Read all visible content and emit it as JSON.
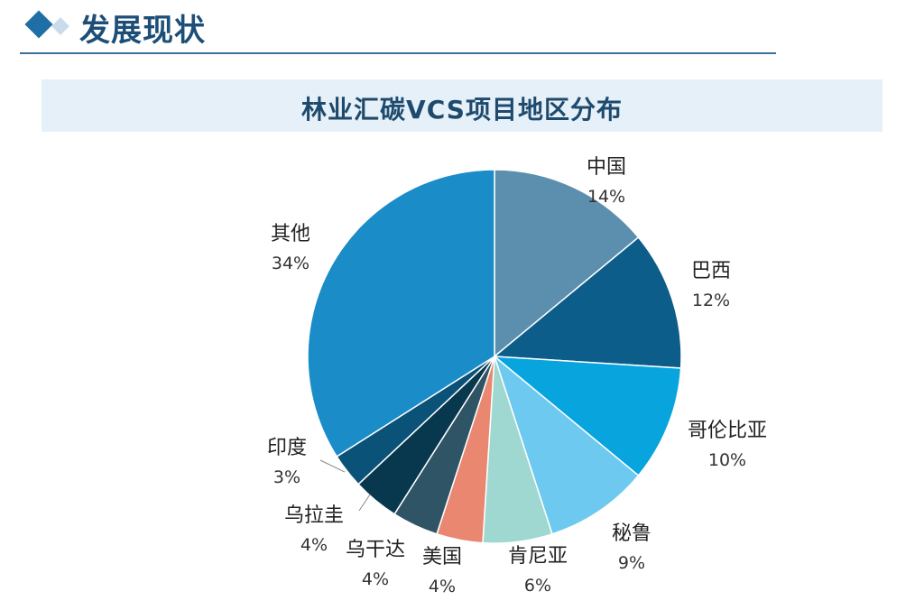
{
  "header": {
    "section_title": "发展现状"
  },
  "chart_data": {
    "type": "pie",
    "title": "林业汇碳VCS项目地区分布",
    "slices": [
      {
        "label": "中国",
        "percent_label": "14%",
        "value": 14,
        "color": "#5b8fad"
      },
      {
        "label": "巴西",
        "percent_label": "12%",
        "value": 12,
        "color": "#0d5d8a"
      },
      {
        "label": "哥伦比亚",
        "percent_label": "10%",
        "value": 10,
        "color": "#07a4dd"
      },
      {
        "label": "秘鲁",
        "percent_label": "9%",
        "value": 9,
        "color": "#6dc9ef"
      },
      {
        "label": "肯尼亚",
        "percent_label": "6%",
        "value": 6,
        "color": "#9fd8d1"
      },
      {
        "label": "美国",
        "percent_label": "4%",
        "value": 4,
        "color": "#ea8770"
      },
      {
        "label": "乌干达",
        "percent_label": "4%",
        "value": 4,
        "color": "#2e5466"
      },
      {
        "label": "乌拉圭",
        "percent_label": "4%",
        "value": 4,
        "color": "#07384e"
      },
      {
        "label": "印度",
        "percent_label": "3%",
        "value": 3,
        "color": "#0b5279"
      },
      {
        "label": "其他",
        "percent_label": "34%",
        "value": 34,
        "color": "#1a8cc7"
      }
    ]
  }
}
